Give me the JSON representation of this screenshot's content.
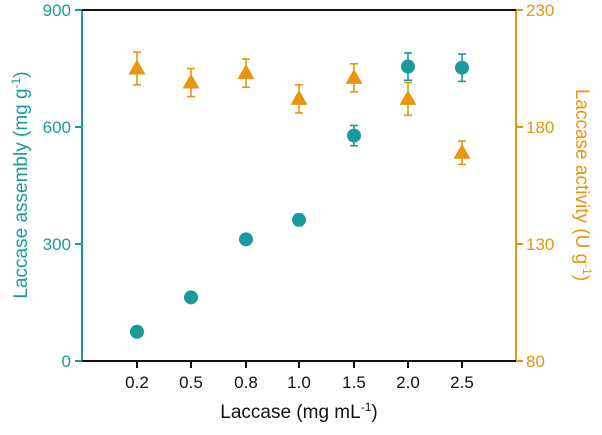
{
  "chart_data": {
    "type": "scatter",
    "x_axis": {
      "label": "Laccase (mg mL",
      "label_sup": "-1",
      "label_end": ")",
      "categories": [
        "0.2",
        "0.5",
        "0.8",
        "1.0",
        "1.5",
        "2.0",
        "2.5"
      ]
    },
    "y_left": {
      "label": "Laccase assembly (mg g",
      "label_sup": "-1",
      "label_end": ")",
      "min": 0,
      "max": 900,
      "ticks": [
        "0",
        "300",
        "600",
        "900"
      ],
      "color": "#1a9a9a"
    },
    "y_right": {
      "label": "Laccase activity (U g",
      "label_sup": "-1",
      "label_end": ")",
      "min": 80,
      "max": 230,
      "ticks": [
        "80",
        "130",
        "180",
        "230"
      ],
      "color": "#e8960f"
    },
    "series": [
      {
        "axis": "left",
        "marker": "circle",
        "color": "#1a9a9a",
        "values": [
          75,
          163,
          312,
          362,
          578,
          755,
          752
        ],
        "errors": [
          8,
          8,
          10,
          14,
          26,
          35,
          35
        ]
      },
      {
        "axis": "right",
        "marker": "triangle",
        "color": "#e8960f",
        "values": [
          205,
          199,
          203,
          192,
          201,
          192,
          169
        ],
        "errors": [
          7,
          6,
          6,
          6,
          6,
          7,
          5
        ]
      }
    ],
    "grid": false,
    "legend": "none"
  }
}
